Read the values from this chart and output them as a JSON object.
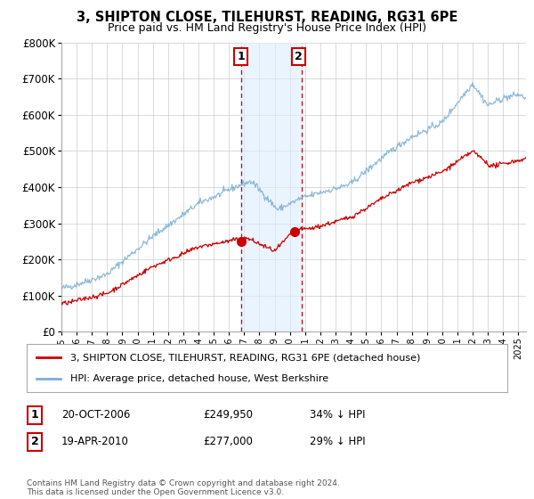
{
  "title": "3, SHIPTON CLOSE, TILEHURST, READING, RG31 6PE",
  "subtitle": "Price paid vs. HM Land Registry's House Price Index (HPI)",
  "legend_label_red": "3, SHIPTON CLOSE, TILEHURST, READING, RG31 6PE (detached house)",
  "legend_label_blue": "HPI: Average price, detached house, West Berkshire",
  "annotation1_label": "1",
  "annotation1_date": "20-OCT-2006",
  "annotation1_price": "£249,950",
  "annotation1_hpi": "34% ↓ HPI",
  "annotation1_year": 2006.8,
  "annotation1_value": 249950,
  "annotation2_label": "2",
  "annotation2_date": "19-APR-2010",
  "annotation2_price": "£277,000",
  "annotation2_hpi": "29% ↓ HPI",
  "annotation2_year": 2010.3,
  "annotation2_value": 277000,
  "footer": "Contains HM Land Registry data © Crown copyright and database right 2024.\nThis data is licensed under the Open Government Licence v3.0.",
  "ylim": [
    0,
    800000
  ],
  "yticks": [
    0,
    100000,
    200000,
    300000,
    400000,
    500000,
    600000,
    700000,
    800000
  ],
  "xlim_start": 1995,
  "xlim_end": 2025.5,
  "background_color": "#ffffff",
  "grid_color": "#cccccc",
  "red_color": "#cc0000",
  "blue_color": "#7bafd4",
  "annotation_box_color": "#cc0000",
  "vline_color": "#cc0000",
  "vspan_color": "#ddeeff"
}
